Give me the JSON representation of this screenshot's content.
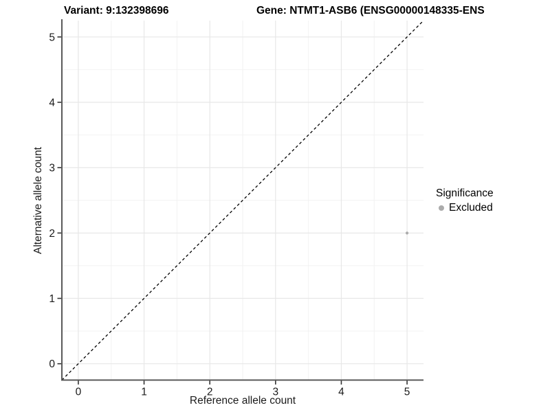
{
  "chart_data": {
    "type": "scatter",
    "title": "Variant: 9:132398696",
    "title_right": "Gene: NTMT1-ASB6 (ENSG00000148335-ENS",
    "xlabel": "Reference allele count",
    "ylabel": "Alternative allele count",
    "xlim": [
      -0.25,
      5.25
    ],
    "ylim": [
      -0.25,
      5.25
    ],
    "xticks": [
      0,
      1,
      2,
      3,
      4,
      5
    ],
    "yticks": [
      0,
      1,
      2,
      3,
      4,
      5
    ],
    "grid": true,
    "minor_grid": true,
    "identity_line": {
      "slope": 1,
      "intercept": 0,
      "style": "dashed",
      "color": "#000000"
    },
    "series": [
      {
        "name": "Excluded",
        "color": "#ababab",
        "marker": "circle",
        "points": [
          {
            "x": 5,
            "y": 2
          }
        ]
      }
    ],
    "legend": {
      "title": "Significance",
      "position": "right",
      "items": [
        {
          "label": "Excluded",
          "color": "#ababab"
        }
      ]
    }
  },
  "colors": {
    "background": "#ffffff",
    "grid_major": "#e7e7e7",
    "grid_minor": "#f2f2f2",
    "axis_line": "#595959",
    "tick": "#333333",
    "text": "#1a1a1a",
    "point": "#ababab"
  }
}
